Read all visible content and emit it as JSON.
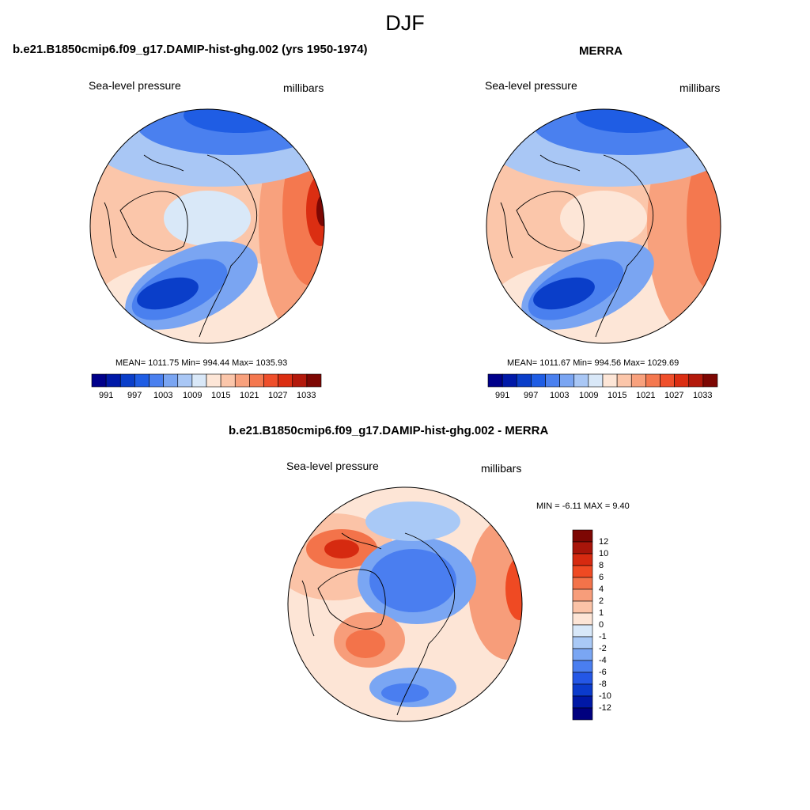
{
  "figure": {
    "title": "DJF",
    "colors": {
      "abs_scale": [
        "#00008a",
        "#0019a8",
        "#0a3ec9",
        "#1f5de4",
        "#4a80ef",
        "#7aa5f2",
        "#a9c7f5",
        "#d9e8f8",
        "#fde6d7",
        "#fbc6aa",
        "#f8a17d",
        "#f4784f",
        "#ef4f2b",
        "#db2e12",
        "#b3190b",
        "#7d0703"
      ],
      "diff_scale": [
        "#00007f",
        "#0018a6",
        "#0b3bcc",
        "#2457e6",
        "#4a7ef0",
        "#7aa6f3",
        "#a9c9f6",
        "#d8e8f9",
        "#fde5d6",
        "#fbc3a7",
        "#f79d7a",
        "#f3734a",
        "#ef4a23",
        "#d62a10",
        "#a8150a",
        "#7d0703"
      ],
      "land_line": "#000000"
    },
    "panels": [
      {
        "title": "b.e21.B1850cmip6.f09_g17.DAMIP-hist-ghg.002 (yrs 1950-1974)",
        "variable": "Sea-level pressure",
        "units": "millibars",
        "stats": "MEAN= 1011.75  Min= 994.44  Max= 1035.93",
        "colorbar_ticks": [
          "991",
          "997",
          "1003",
          "1009",
          "1015",
          "1021",
          "1027",
          "1033"
        ]
      },
      {
        "title": "MERRA",
        "variable": "Sea-level pressure",
        "units": "millibars",
        "stats": "MEAN= 1011.67  Min= 994.56  Max= 1029.69",
        "colorbar_ticks": [
          "991",
          "997",
          "1003",
          "1009",
          "1015",
          "1021",
          "1027",
          "1033"
        ]
      },
      {
        "title": "b.e21.B1850cmip6.f09_g17.DAMIP-hist-ghg.002 - MERRA",
        "variable": "Sea-level pressure",
        "units": "millibars",
        "stats": "MIN =  -6.11 MAX =   9.40",
        "colorbar_ticks": [
          "12",
          "10",
          "8",
          "6",
          "4",
          "2",
          "1",
          "0",
          "-1",
          "-2",
          "-4",
          "-6",
          "-8",
          "-10",
          "-12"
        ]
      }
    ]
  }
}
